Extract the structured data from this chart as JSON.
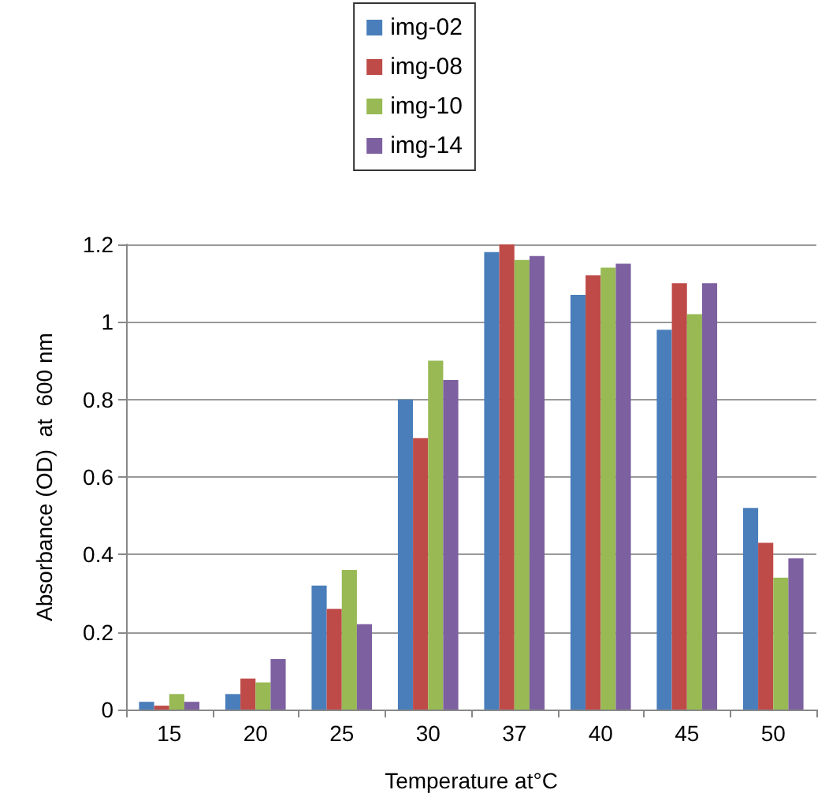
{
  "chart_data": {
    "type": "bar",
    "xlabel": "Temperature at°C",
    "ylabel": "Absorbance (OD)  at  600 nm",
    "categories": [
      "15",
      "20",
      "25",
      "30",
      "37",
      "40",
      "45",
      "50"
    ],
    "series": [
      {
        "name": "img-02",
        "color": "#4a7ebb",
        "values": [
          0.02,
          0.04,
          0.32,
          0.8,
          1.18,
          1.07,
          0.98,
          0.52
        ]
      },
      {
        "name": "img-08",
        "color": "#be4b48",
        "values": [
          0.01,
          0.08,
          0.26,
          0.7,
          1.2,
          1.12,
          1.1,
          0.43
        ]
      },
      {
        "name": "img-10",
        "color": "#98b954",
        "values": [
          0.04,
          0.07,
          0.36,
          0.9,
          1.16,
          1.14,
          1.02,
          0.34
        ]
      },
      {
        "name": "img-14",
        "color": "#7d60a0",
        "values": [
          0.02,
          0.13,
          0.22,
          0.85,
          1.17,
          1.15,
          1.1,
          0.39
        ]
      }
    ],
    "ylim": [
      0,
      1.2
    ],
    "yticks": [
      0,
      0.2,
      0.4,
      0.6,
      0.8,
      1,
      1.2
    ],
    "grid": "y",
    "legend": "top"
  }
}
